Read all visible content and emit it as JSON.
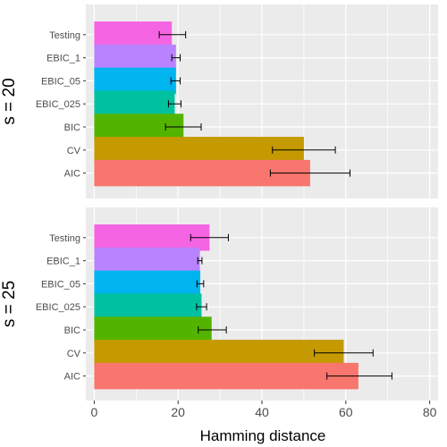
{
  "chart_data": {
    "type": "bar",
    "orientation": "horizontal",
    "xlabel": "Hamming distance",
    "xlim": [
      -2,
      82
    ],
    "x_ticks": [
      0,
      20,
      40,
      60,
      80
    ],
    "grid": true,
    "legend": "none",
    "categories": [
      "Testing",
      "EBIC_1",
      "EBIC_05",
      "EBIC_025",
      "BIC",
      "CV",
      "AIC"
    ],
    "colors": {
      "Testing": "#F564E3",
      "EBIC_1": "#B983FF",
      "EBIC_05": "#00B4F0",
      "EBIC_025": "#00C19F",
      "BIC": "#53B400",
      "CV": "#C49A00",
      "AIC": "#F8766D"
    },
    "panels": [
      {
        "label": "s = 20",
        "values": [
          18.5,
          19.5,
          19.5,
          19.2,
          21.3,
          50.0,
          51.5
        ],
        "error_low": [
          15.5,
          18.5,
          18.3,
          17.7,
          17.0,
          42.5,
          42.0
        ],
        "error_high": [
          21.8,
          20.5,
          20.5,
          20.7,
          25.5,
          57.5,
          61.0
        ]
      },
      {
        "label": "s = 25",
        "values": [
          27.5,
          25.2,
          25.3,
          25.6,
          28.0,
          59.5,
          63.0
        ],
        "error_low": [
          23.0,
          24.7,
          24.5,
          24.4,
          24.8,
          52.5,
          55.5
        ],
        "error_high": [
          32.0,
          25.7,
          26.1,
          26.8,
          31.5,
          66.5,
          71.0
        ]
      }
    ]
  }
}
